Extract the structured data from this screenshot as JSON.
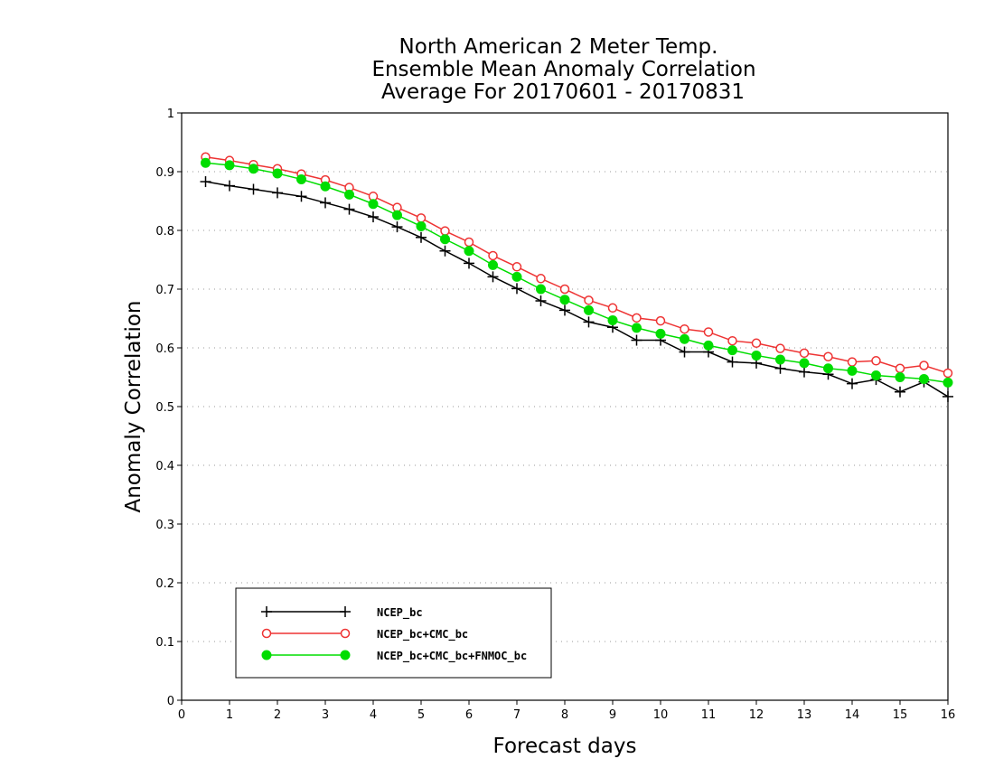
{
  "chart_data": {
    "type": "line",
    "title": [
      "North American 2 Meter Temp.",
      "Ensemble Mean Anomaly Correlation",
      "Average For 20170601 - 20170831"
    ],
    "xlabel": "Forecast days",
    "ylabel": "Anomaly Correlation",
    "xlim": [
      0,
      16
    ],
    "ylim": [
      0,
      1
    ],
    "xticks": [
      "0",
      "1",
      "2",
      "3",
      "4",
      "5",
      "6",
      "7",
      "8",
      "9",
      "10",
      "11",
      "12",
      "13",
      "14",
      "15",
      "16"
    ],
    "yticks": [
      "0",
      "0.1",
      "0.2",
      "0.3",
      "0.4",
      "0.5",
      "0.6",
      "0.7",
      "0.8",
      "0.9",
      "1"
    ],
    "grid": "dotted horizontal",
    "legend_placement": "bottom-left",
    "x": [
      0.5,
      1,
      1.5,
      2,
      2.5,
      3,
      3.5,
      4,
      4.5,
      5,
      5.5,
      6,
      6.5,
      7,
      7.5,
      8,
      8.5,
      9,
      9.5,
      10,
      10.5,
      11,
      11.5,
      12,
      12.5,
      13,
      13.5,
      14,
      14.5,
      15,
      15.5,
      16
    ],
    "series": [
      {
        "name": "NCEP_bc",
        "color": "#000000",
        "marker": "plus",
        "values": [
          0.883,
          0.876,
          0.87,
          0.864,
          0.858,
          0.847,
          0.836,
          0.823,
          0.806,
          0.788,
          0.765,
          0.744,
          0.721,
          0.701,
          0.68,
          0.664,
          0.644,
          0.635,
          0.613,
          0.613,
          0.593,
          0.593,
          0.576,
          0.574,
          0.565,
          0.559,
          0.555,
          0.539,
          0.546,
          0.525,
          0.542,
          0.517
        ]
      },
      {
        "name": "NCEP_bc+CMC_bc",
        "color": "#ee3333",
        "marker": "open-circle",
        "values": [
          0.925,
          0.919,
          0.912,
          0.905,
          0.896,
          0.886,
          0.873,
          0.858,
          0.839,
          0.821,
          0.799,
          0.78,
          0.757,
          0.738,
          0.718,
          0.7,
          0.681,
          0.668,
          0.651,
          0.646,
          0.632,
          0.627,
          0.612,
          0.608,
          0.599,
          0.591,
          0.585,
          0.576,
          0.578,
          0.565,
          0.57,
          0.557
        ]
      },
      {
        "name": "NCEP_bc+CMC_bc+FNMOC_bc",
        "color": "#00dd00",
        "marker": "filled-circle",
        "values": [
          0.915,
          0.911,
          0.905,
          0.897,
          0.887,
          0.875,
          0.861,
          0.845,
          0.826,
          0.807,
          0.785,
          0.765,
          0.741,
          0.721,
          0.7,
          0.682,
          0.664,
          0.647,
          0.634,
          0.624,
          0.615,
          0.604,
          0.596,
          0.587,
          0.58,
          0.574,
          0.565,
          0.561,
          0.553,
          0.55,
          0.547,
          0.541
        ]
      }
    ]
  }
}
